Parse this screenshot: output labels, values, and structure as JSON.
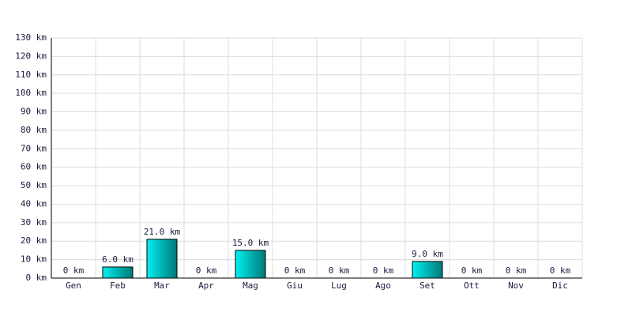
{
  "chart_data": {
    "type": "bar",
    "categories": [
      "Gen",
      "Feb",
      "Mar",
      "Apr",
      "Mag",
      "Giu",
      "Lug",
      "Ago",
      "Set",
      "Ott",
      "Nov",
      "Dic"
    ],
    "values": [
      0,
      6,
      21,
      0,
      15,
      0,
      0,
      0,
      9,
      0,
      0,
      0
    ],
    "value_labels": [
      "0 km",
      "6.0 km",
      "21.0 km",
      "0 km",
      "15.0 km",
      "0 km",
      "0 km",
      "0 km",
      "9.0 km",
      "0 km",
      "0 km",
      "0 km"
    ],
    "color": "#00c8c8",
    "ylim": [
      0,
      130
    ],
    "yticks": [
      {
        "value": 0,
        "label": "0 km"
      },
      {
        "value": 10,
        "label": "10 km"
      },
      {
        "value": 20,
        "label": "20 km"
      },
      {
        "value": 30,
        "label": "30 km"
      },
      {
        "value": 40,
        "label": "40 km"
      },
      {
        "value": 50,
        "label": "50 km"
      },
      {
        "value": 60,
        "label": "60 km"
      },
      {
        "value": 70,
        "label": "70 km"
      },
      {
        "value": 80,
        "label": "80 km"
      },
      {
        "value": 90,
        "label": "90 km"
      },
      {
        "value": 100,
        "label": "100 km"
      },
      {
        "value": 110,
        "label": "110 km"
      },
      {
        "value": 120,
        "label": "120 km"
      },
      {
        "value": 130,
        "label": "130 km"
      }
    ],
    "grid": true
  }
}
